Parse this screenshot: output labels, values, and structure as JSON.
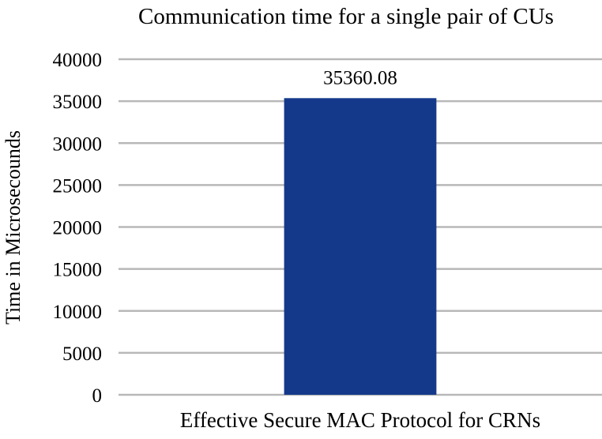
{
  "chart_data": {
    "type": "bar",
    "title": "Communication time for a single pair of CUs",
    "xlabel": "",
    "ylabel": "Time in Microsecounds",
    "categories": [
      "Effective Secure MAC Protocol for CRNs"
    ],
    "series": [
      {
        "values": [
          35360.08
        ],
        "color": "#15398a"
      }
    ],
    "data_labels": [
      "35360.08"
    ],
    "ylim": [
      0,
      40000
    ],
    "yticks": [
      "0",
      "5000",
      "10000",
      "15000",
      "20000",
      "25000",
      "30000",
      "35000",
      "40000"
    ],
    "grid": true,
    "legend": "none"
  }
}
